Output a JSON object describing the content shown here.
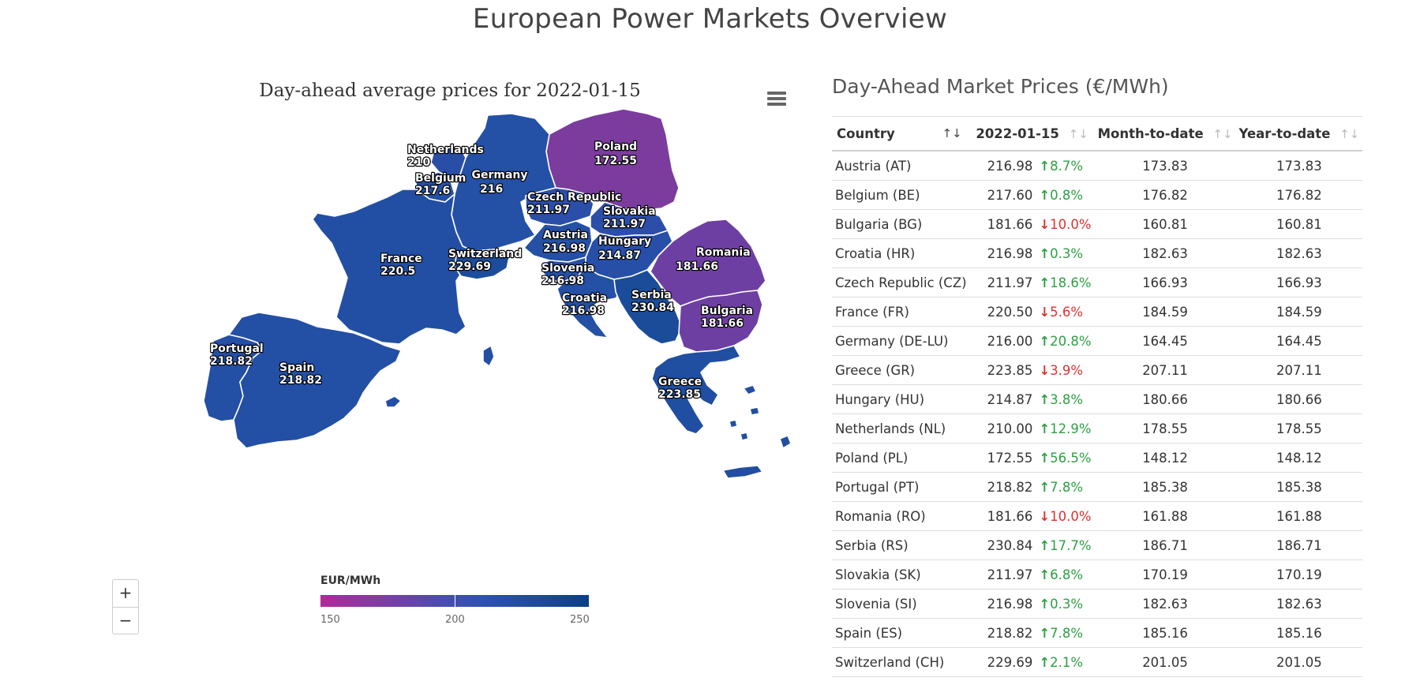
{
  "page_title": "European Power Markets Overview",
  "map": {
    "title": "Day-ahead average prices for 2022-01-15",
    "menu_icon": "hamburger-menu-icon",
    "zoom_in_label": "+",
    "zoom_out_label": "−",
    "legend": {
      "title": "EUR/MWh",
      "min": "150",
      "mid": "200",
      "max": "250",
      "colors": [
        "#b3289a",
        "#7a3ea6",
        "#2f52b0",
        "#0a3f86"
      ]
    },
    "regions": [
      {
        "id": "poland",
        "name": "Poland",
        "value": "172.55",
        "fill": "#7b3c9e"
      },
      {
        "id": "germany",
        "name": "Germany",
        "value": "216",
        "fill": "#2450a6"
      },
      {
        "id": "netherlands",
        "name": "Netherlands",
        "value": "210",
        "fill": "#2a4ea8"
      },
      {
        "id": "belgium",
        "name": "Belgium",
        "value": "217.6",
        "fill": "#2450a6"
      },
      {
        "id": "czech",
        "name": "Czech Republic",
        "value": "211.97",
        "fill": "#2b4ea9"
      },
      {
        "id": "slovakia",
        "name": "Slovakia",
        "value": "211.97",
        "fill": "#2b4ea9"
      },
      {
        "id": "austria",
        "name": "Austria",
        "value": "216.98",
        "fill": "#2450a6"
      },
      {
        "id": "hungary",
        "name": "Hungary",
        "value": "214.87",
        "fill": "#274fa8"
      },
      {
        "id": "france",
        "name": "France",
        "value": "220.5",
        "fill": "#224fa4"
      },
      {
        "id": "switzerland",
        "name": "Switzerland",
        "value": "229.69",
        "fill": "#1c4d9c"
      },
      {
        "id": "slovenia",
        "name": "Slovenia",
        "value": "216.98",
        "fill": "#2450a6"
      },
      {
        "id": "croatia",
        "name": "Croatia",
        "value": "216.98",
        "fill": "#2450a6"
      },
      {
        "id": "romania",
        "name": "Romania",
        "value": "181.66",
        "fill": "#6e3fa3"
      },
      {
        "id": "serbia",
        "name": "Serbia",
        "value": "230.84",
        "fill": "#1b4c9a"
      },
      {
        "id": "bulgaria",
        "name": "Bulgaria",
        "value": "181.66",
        "fill": "#6e3fa3"
      },
      {
        "id": "greece",
        "name": "Greece",
        "value": "223.85",
        "fill": "#204ea1"
      },
      {
        "id": "portugal",
        "name": "Portugal",
        "value": "218.82",
        "fill": "#234fa5"
      },
      {
        "id": "spain",
        "name": "Spain",
        "value": "218.82",
        "fill": "#234fa5"
      }
    ]
  },
  "table": {
    "title": "Day-Ahead Market Prices (€/MWh)",
    "headers": {
      "country": "Country",
      "day": "2022-01-15",
      "mtd": "Month-to-date",
      "ytd": "Year-to-date"
    },
    "sort_icons": {
      "country": "↑↓",
      "day": "↑↓",
      "mtd": "↑↓",
      "ytd": "↑↓"
    },
    "rows": [
      {
        "country": "Austria (AT)",
        "price": "216.98",
        "dir": "up",
        "change": "8.7%",
        "mtd": "173.83",
        "ytd": "173.83"
      },
      {
        "country": "Belgium (BE)",
        "price": "217.60",
        "dir": "up",
        "change": "0.8%",
        "mtd": "176.82",
        "ytd": "176.82"
      },
      {
        "country": "Bulgaria (BG)",
        "price": "181.66",
        "dir": "down",
        "change": "10.0%",
        "mtd": "160.81",
        "ytd": "160.81"
      },
      {
        "country": "Croatia (HR)",
        "price": "216.98",
        "dir": "up",
        "change": "0.3%",
        "mtd": "182.63",
        "ytd": "182.63"
      },
      {
        "country": "Czech Republic (CZ)",
        "price": "211.97",
        "dir": "up",
        "change": "18.6%",
        "mtd": "166.93",
        "ytd": "166.93"
      },
      {
        "country": "France (FR)",
        "price": "220.50",
        "dir": "down",
        "change": "5.6%",
        "mtd": "184.59",
        "ytd": "184.59"
      },
      {
        "country": "Germany (DE-LU)",
        "price": "216.00",
        "dir": "up",
        "change": "20.8%",
        "mtd": "164.45",
        "ytd": "164.45"
      },
      {
        "country": "Greece (GR)",
        "price": "223.85",
        "dir": "down",
        "change": "3.9%",
        "mtd": "207.11",
        "ytd": "207.11"
      },
      {
        "country": "Hungary (HU)",
        "price": "214.87",
        "dir": "up",
        "change": "3.8%",
        "mtd": "180.66",
        "ytd": "180.66"
      },
      {
        "country": "Netherlands (NL)",
        "price": "210.00",
        "dir": "up",
        "change": "12.9%",
        "mtd": "178.55",
        "ytd": "178.55"
      },
      {
        "country": "Poland (PL)",
        "price": "172.55",
        "dir": "up",
        "change": "56.5%",
        "mtd": "148.12",
        "ytd": "148.12"
      },
      {
        "country": "Portugal (PT)",
        "price": "218.82",
        "dir": "up",
        "change": "7.8%",
        "mtd": "185.38",
        "ytd": "185.38"
      },
      {
        "country": "Romania (RO)",
        "price": "181.66",
        "dir": "down",
        "change": "10.0%",
        "mtd": "161.88",
        "ytd": "161.88"
      },
      {
        "country": "Serbia (RS)",
        "price": "230.84",
        "dir": "up",
        "change": "17.7%",
        "mtd": "186.71",
        "ytd": "186.71"
      },
      {
        "country": "Slovakia (SK)",
        "price": "211.97",
        "dir": "up",
        "change": "6.8%",
        "mtd": "170.19",
        "ytd": "170.19"
      },
      {
        "country": "Slovenia (SI)",
        "price": "216.98",
        "dir": "up",
        "change": "0.3%",
        "mtd": "182.63",
        "ytd": "182.63"
      },
      {
        "country": "Spain (ES)",
        "price": "218.82",
        "dir": "up",
        "change": "7.8%",
        "mtd": "185.16",
        "ytd": "185.16"
      },
      {
        "country": "Switzerland (CH)",
        "price": "229.69",
        "dir": "up",
        "change": "2.1%",
        "mtd": "201.05",
        "ytd": "201.05"
      }
    ],
    "colors": {
      "up": "#2ea043",
      "down": "#e03131"
    }
  }
}
